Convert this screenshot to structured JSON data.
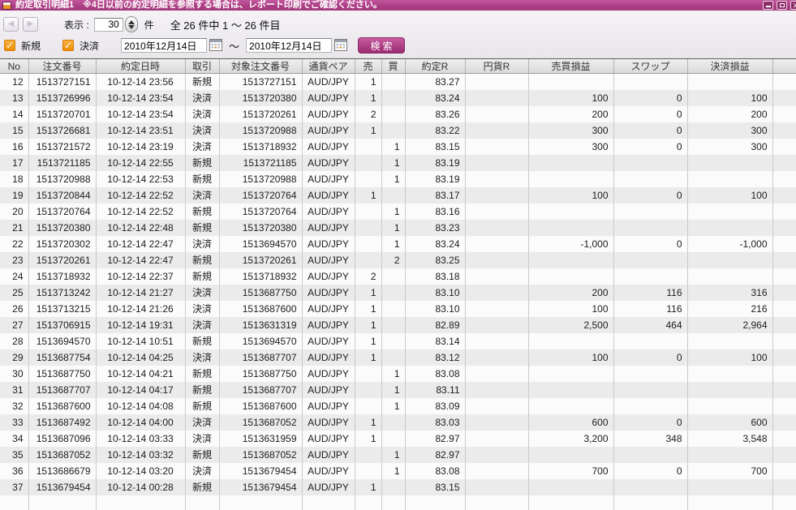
{
  "titlebar": {
    "title": "約定取引明細1　※4日以前の約定明細を参照する場合は、レポート印刷でご確認ください。"
  },
  "toolbar": {
    "back_icon": "left-arrow",
    "forward_icon": "right-arrow",
    "display_label": "表示 :",
    "display_count_value": "30",
    "unit_label": "件",
    "range_text": "全 26 件中 1 ～ 26 件目",
    "checkbox_new": {
      "label": "新規",
      "checked": true,
      "check_glyph": "✓"
    },
    "checkbox_settle": {
      "label": "決済",
      "checked": true,
      "check_glyph": "✓"
    },
    "date_from": "2010年12月14日",
    "date_separator": "～",
    "date_to": "2010年12月14日",
    "search_label": "検索"
  },
  "colors": {
    "titlebar_magenta": "#ad3f85",
    "window_button_magenta": "#8d2e68",
    "search_button_magenta": "#b04389",
    "checkbox_orange": "#f09b1c",
    "row_alt_gray": "#ebebeb"
  },
  "table": {
    "columns": [
      {
        "key": "no",
        "label": "No"
      },
      {
        "key": "order_no",
        "label": "注文番号"
      },
      {
        "key": "exec_time",
        "label": "約定日時"
      },
      {
        "key": "trade_type",
        "label": "取引"
      },
      {
        "key": "target_order_no",
        "label": "対象注文番号"
      },
      {
        "key": "pair",
        "label": "通貨ペア"
      },
      {
        "key": "sell",
        "label": "売"
      },
      {
        "key": "buy",
        "label": "買"
      },
      {
        "key": "exec_rate",
        "label": "約定R"
      },
      {
        "key": "jpy_rate",
        "label": "円貨R"
      },
      {
        "key": "trade_pl",
        "label": "売買損益"
      },
      {
        "key": "swap",
        "label": "スワップ"
      },
      {
        "key": "settle_pl",
        "label": "決済損益"
      },
      {
        "key": "filler",
        "label": ""
      }
    ],
    "rows": [
      [
        "12",
        "1513727151",
        "10-12-14 23:56",
        "新規",
        "1513727151",
        "AUD/JPY",
        "1",
        "",
        "83.27",
        "",
        "",
        "",
        ""
      ],
      [
        "13",
        "1513726996",
        "10-12-14 23:54",
        "決済",
        "1513720380",
        "AUD/JPY",
        "1",
        "",
        "83.24",
        "",
        "100",
        "0",
        "100"
      ],
      [
        "14",
        "1513720701",
        "10-12-14 23:54",
        "決済",
        "1513720261",
        "AUD/JPY",
        "2",
        "",
        "83.26",
        "",
        "200",
        "0",
        "200"
      ],
      [
        "15",
        "1513726681",
        "10-12-14 23:51",
        "決済",
        "1513720988",
        "AUD/JPY",
        "1",
        "",
        "83.22",
        "",
        "300",
        "0",
        "300"
      ],
      [
        "16",
        "1513721572",
        "10-12-14 23:19",
        "決済",
        "1513718932",
        "AUD/JPY",
        "",
        "1",
        "83.15",
        "",
        "300",
        "0",
        "300"
      ],
      [
        "17",
        "1513721185",
        "10-12-14 22:55",
        "新規",
        "1513721185",
        "AUD/JPY",
        "",
        "1",
        "83.19",
        "",
        "",
        "",
        ""
      ],
      [
        "18",
        "1513720988",
        "10-12-14 22:53",
        "新規",
        "1513720988",
        "AUD/JPY",
        "",
        "1",
        "83.19",
        "",
        "",
        "",
        ""
      ],
      [
        "19",
        "1513720844",
        "10-12-14 22:52",
        "決済",
        "1513720764",
        "AUD/JPY",
        "1",
        "",
        "83.17",
        "",
        "100",
        "0",
        "100"
      ],
      [
        "20",
        "1513720764",
        "10-12-14 22:52",
        "新規",
        "1513720764",
        "AUD/JPY",
        "",
        "1",
        "83.16",
        "",
        "",
        "",
        ""
      ],
      [
        "21",
        "1513720380",
        "10-12-14 22:48",
        "新規",
        "1513720380",
        "AUD/JPY",
        "",
        "1",
        "83.23",
        "",
        "",
        "",
        ""
      ],
      [
        "22",
        "1513720302",
        "10-12-14 22:47",
        "決済",
        "1513694570",
        "AUD/JPY",
        "",
        "1",
        "83.24",
        "",
        "-1,000",
        "0",
        "-1,000"
      ],
      [
        "23",
        "1513720261",
        "10-12-14 22:47",
        "新規",
        "1513720261",
        "AUD/JPY",
        "",
        "2",
        "83.25",
        "",
        "",
        "",
        ""
      ],
      [
        "24",
        "1513718932",
        "10-12-14 22:37",
        "新規",
        "1513718932",
        "AUD/JPY",
        "2",
        "",
        "83.18",
        "",
        "",
        "",
        ""
      ],
      [
        "25",
        "1513713242",
        "10-12-14 21:27",
        "決済",
        "1513687750",
        "AUD/JPY",
        "1",
        "",
        "83.10",
        "",
        "200",
        "116",
        "316"
      ],
      [
        "26",
        "1513713215",
        "10-12-14 21:26",
        "決済",
        "1513687600",
        "AUD/JPY",
        "1",
        "",
        "83.10",
        "",
        "100",
        "116",
        "216"
      ],
      [
        "27",
        "1513706915",
        "10-12-14 19:31",
        "決済",
        "1513631319",
        "AUD/JPY",
        "1",
        "",
        "82.89",
        "",
        "2,500",
        "464",
        "2,964"
      ],
      [
        "28",
        "1513694570",
        "10-12-14 10:51",
        "新規",
        "1513694570",
        "AUD/JPY",
        "1",
        "",
        "83.14",
        "",
        "",
        "",
        ""
      ],
      [
        "29",
        "1513687754",
        "10-12-14 04:25",
        "決済",
        "1513687707",
        "AUD/JPY",
        "1",
        "",
        "83.12",
        "",
        "100",
        "0",
        "100"
      ],
      [
        "30",
        "1513687750",
        "10-12-14 04:21",
        "新規",
        "1513687750",
        "AUD/JPY",
        "",
        "1",
        "83.08",
        "",
        "",
        "",
        ""
      ],
      [
        "31",
        "1513687707",
        "10-12-14 04:17",
        "新規",
        "1513687707",
        "AUD/JPY",
        "",
        "1",
        "83.11",
        "",
        "",
        "",
        ""
      ],
      [
        "32",
        "1513687600",
        "10-12-14 04:08",
        "新規",
        "1513687600",
        "AUD/JPY",
        "",
        "1",
        "83.09",
        "",
        "",
        "",
        ""
      ],
      [
        "33",
        "1513687492",
        "10-12-14 04:00",
        "決済",
        "1513687052",
        "AUD/JPY",
        "1",
        "",
        "83.03",
        "",
        "600",
        "0",
        "600"
      ],
      [
        "34",
        "1513687096",
        "10-12-14 03:33",
        "決済",
        "1513631959",
        "AUD/JPY",
        "1",
        "",
        "82.97",
        "",
        "3,200",
        "348",
        "3,548"
      ],
      [
        "35",
        "1513687052",
        "10-12-14 03:32",
        "新規",
        "1513687052",
        "AUD/JPY",
        "",
        "1",
        "82.97",
        "",
        "",
        "",
        ""
      ],
      [
        "36",
        "1513686679",
        "10-12-14 03:20",
        "決済",
        "1513679454",
        "AUD/JPY",
        "",
        "1",
        "83.08",
        "",
        "700",
        "0",
        "700"
      ],
      [
        "37",
        "1513679454",
        "10-12-14 00:28",
        "新規",
        "1513679454",
        "AUD/JPY",
        "1",
        "",
        "83.15",
        "",
        "",
        "",
        ""
      ]
    ]
  }
}
